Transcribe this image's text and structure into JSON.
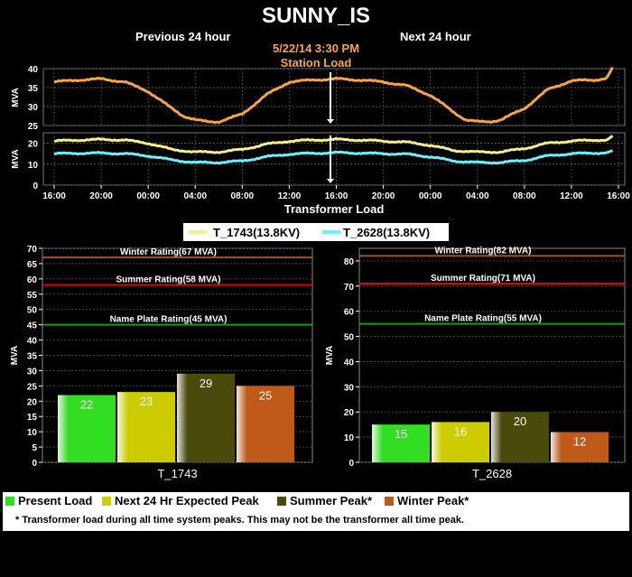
{
  "header": {
    "title": "SUNNY_IS",
    "previous_label": "Previous 24 hour",
    "next_label": "Next 24 hour",
    "datetime": "5/22/14 3:30 PM",
    "station_load_label": "Station Load"
  },
  "chart_data": [
    {
      "type": "line",
      "panel": "station-load",
      "ylabel": "MVA",
      "ylim": [
        25,
        40
      ],
      "yticks": [
        25,
        30,
        35,
        40
      ],
      "x_tick_labels": [
        "16:00",
        "20:00",
        "00:00",
        "04:00",
        "08:00",
        "12:00",
        "16:00",
        "20:00",
        "00:00",
        "04:00",
        "08:00",
        "12:00",
        "16:00"
      ],
      "x_hours": [
        0,
        4,
        8,
        12,
        16,
        20,
        24,
        28,
        32,
        36,
        40,
        44,
        48
      ],
      "current_time_hour": 23.5,
      "series": [
        {
          "color": "#f7a446",
          "x": [
            0,
            2,
            4,
            6,
            8,
            10,
            11,
            12,
            13,
            14,
            16,
            18,
            20,
            22,
            24,
            26,
            28,
            30,
            32,
            34,
            35,
            36,
            37,
            38,
            40,
            42,
            44,
            46,
            47,
            47.5
          ],
          "y": [
            36.5,
            37,
            37.3,
            36.5,
            34,
            29.5,
            27.5,
            26.5,
            26,
            26,
            28,
            33,
            36.5,
            37,
            37.3,
            37,
            36.5,
            35.5,
            33,
            28.5,
            26.5,
            26,
            26,
            26.5,
            29.5,
            34.5,
            36.8,
            37,
            37.5,
            40.3
          ]
        }
      ]
    },
    {
      "type": "line",
      "panel": "transformer-load",
      "ylabel": "MVA",
      "xlabel": "Transformer Load",
      "ylim": [
        0,
        25
      ],
      "yticks": [
        0,
        10,
        20
      ],
      "x_tick_labels": [
        "16:00",
        "20:00",
        "00:00",
        "04:00",
        "08:00",
        "12:00",
        "16:00",
        "20:00",
        "00:00",
        "04:00",
        "08:00",
        "12:00",
        "16:00"
      ],
      "x_hours": [
        0,
        4,
        8,
        12,
        16,
        20,
        24,
        28,
        32,
        36,
        40,
        44,
        48
      ],
      "current_time_hour": 23.5,
      "legend": [
        "T_1743(13.8KV)",
        "T_2628(13.8KV)"
      ],
      "series": [
        {
          "name": "T_1743(13.8KV)",
          "color": "#f4ef8e",
          "x": [
            0,
            2,
            4,
            6,
            8,
            10,
            12,
            14,
            16,
            18,
            20,
            22,
            24,
            26,
            28,
            30,
            32,
            34,
            36,
            38,
            40,
            42,
            44,
            46,
            47,
            47.5
          ],
          "y": [
            21,
            21.5,
            21.8,
            21.5,
            20,
            17,
            15.8,
            15.8,
            17,
            19.5,
            21,
            21.5,
            21.8,
            21.5,
            21,
            20.5,
            19,
            16.5,
            15.8,
            15.8,
            17.5,
            20,
            21,
            21.5,
            21.5,
            23.5
          ]
        },
        {
          "name": "T_2628(13.8KV)",
          "color": "#6ff0ff",
          "x": [
            0,
            2,
            4,
            6,
            8,
            10,
            12,
            14,
            16,
            18,
            20,
            22,
            24,
            26,
            28,
            30,
            32,
            34,
            36,
            38,
            40,
            42,
            44,
            46,
            47,
            47.5
          ],
          "y": [
            15,
            15.2,
            15.3,
            15,
            14,
            12,
            10.8,
            10.8,
            11.5,
            13.5,
            14.8,
            15.2,
            15.5,
            15.3,
            15,
            14.8,
            13.5,
            11.5,
            10.8,
            10.8,
            11.8,
            14,
            15,
            15.3,
            15.5,
            16.5
          ]
        }
      ]
    },
    {
      "type": "bar",
      "panel": "T_1743",
      "xlabel": "T_1743",
      "ylabel": "MVA",
      "ylim": [
        0,
        70
      ],
      "yticks": [
        0,
        5,
        10,
        15,
        20,
        25,
        30,
        35,
        40,
        45,
        50,
        55,
        60,
        65,
        70
      ],
      "categories": [
        "Present Load",
        "Next 24 Hr Expected Peak",
        "Summer Peak*",
        "Winter Peak*"
      ],
      "values": [
        22,
        23,
        29,
        25
      ],
      "value_labels": [
        "22",
        "23",
        "29",
        "25"
      ],
      "ratings": [
        {
          "label": "Winter Rating(67 MVA)",
          "value": 67,
          "color": "#a0522d"
        },
        {
          "label": "Summer Rating(58 MVA)",
          "value": 58,
          "color": "#e00000"
        },
        {
          "label": "Name Plate Rating(45 MVA)",
          "value": 45,
          "color": "#10a010"
        }
      ]
    },
    {
      "type": "bar",
      "panel": "T_2628",
      "xlabel": "T_2628",
      "ylabel": "MVA",
      "ylim": [
        0,
        85
      ],
      "yticks": [
        0,
        10,
        20,
        30,
        40,
        50,
        60,
        70,
        80
      ],
      "categories": [
        "Present Load",
        "Next 24 Hr Expected Peak",
        "Summer Peak*",
        "Winter Peak*"
      ],
      "values": [
        15,
        16,
        20,
        12
      ],
      "value_labels": [
        "15",
        "16",
        "20",
        "12"
      ],
      "ratings": [
        {
          "label": "Winter Rating(82 MVA)",
          "value": 82,
          "color": "#a0522d"
        },
        {
          "label": "Summer Rating(71 MVA)",
          "value": 71,
          "color": "#e00000"
        },
        {
          "label": "Name Plate Rating(55 MVA)",
          "value": 55,
          "color": "#10a010"
        }
      ]
    }
  ],
  "bar_colors": [
    "#33dd22",
    "#cccc00",
    "#4a4a0a",
    "#c05a1a"
  ],
  "bottom_legend": {
    "items": [
      {
        "label": "Present Load",
        "color": "#33dd22"
      },
      {
        "label": "Next 24 Hr Expected Peak",
        "color": "#cccc00"
      },
      {
        "label": "Summer Peak*",
        "color": "#4a4a0a"
      },
      {
        "label": "Winter Peak*",
        "color": "#c05a1a"
      }
    ],
    "footnote": "* Transformer load during all time system peaks. This may not be the transformer all time peak."
  }
}
